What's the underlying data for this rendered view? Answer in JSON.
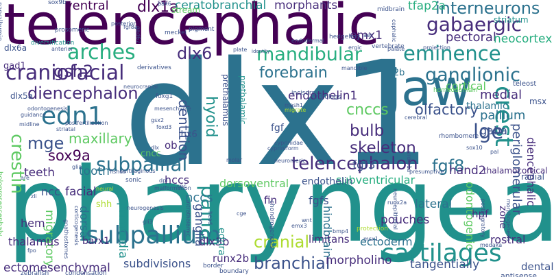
{
  "colors": {
    "background": "#ffffff",
    "palette": [
      "#440154",
      "#472d7b",
      "#3b528b",
      "#2c728e",
      "#21918c",
      "#28ae80",
      "#5ec962",
      "#addc30",
      "#fde725"
    ]
  },
  "words": [
    {
      "text": "dlx1",
      "color": "#2c728e"
    },
    {
      "text": "pharyngeal",
      "color": "#21918c"
    },
    {
      "text": "telencephalic",
      "color": "#440154"
    },
    {
      "text": "jaw",
      "color": "#2c728e"
    },
    {
      "text": "arches",
      "color": "#28ae80"
    },
    {
      "text": "craniofacial",
      "color": "#472d7b"
    },
    {
      "text": "mandibular",
      "color": "#28ae80"
    },
    {
      "text": "eminence",
      "color": "#21918c"
    },
    {
      "text": "telencephalon",
      "color": "#472d7b"
    },
    {
      "text": "subpallial",
      "color": "#2c728e"
    },
    {
      "text": "cartilages",
      "color": "#21918c"
    },
    {
      "text": "subpallium",
      "color": "#2c728e"
    },
    {
      "text": "branchial",
      "color": "#3b528b"
    },
    {
      "text": "gabaergic",
      "color": "#472d7b"
    },
    {
      "text": "ganglionic",
      "color": "#2c728e"
    },
    {
      "text": "diencephalon",
      "color": "#472d7b"
    },
    {
      "text": "edn1",
      "color": "#2c728e"
    },
    {
      "text": "crest",
      "color": "#21918c"
    },
    {
      "text": "mge",
      "color": "#3b528b"
    },
    {
      "text": "lge",
      "color": "#3b528b"
    },
    {
      "text": "interneurons",
      "color": "#2c728e"
    },
    {
      "text": "forebrain",
      "color": "#2c728e"
    },
    {
      "text": "cranial",
      "color": "#addc30"
    },
    {
      "text": "pallial",
      "color": "#21918c"
    },
    {
      "text": "crestin",
      "color": "#5ec962"
    },
    {
      "text": "gsh2",
      "color": "#472d7b"
    },
    {
      "text": "dlx6",
      "color": "#472d7b"
    },
    {
      "text": "hyoid",
      "color": "#21918c"
    },
    {
      "text": "fgf8",
      "color": "#2c728e"
    },
    {
      "text": "skeleton",
      "color": "#472d7b"
    },
    {
      "text": "olfactory",
      "color": "#3b528b"
    },
    {
      "text": "bulb",
      "color": "#472d7b"
    },
    {
      "text": "cnccs",
      "color": "#5ec962"
    },
    {
      "text": "dlx1a",
      "color": "#440154"
    },
    {
      "text": "maxillary",
      "color": "#5ec962"
    },
    {
      "text": "sox9a",
      "color": "#440154"
    },
    {
      "text": "dentition",
      "color": "#3b528b"
    },
    {
      "text": "nccs",
      "color": "#2c728e"
    },
    {
      "text": "ventral",
      "color": "#440154"
    },
    {
      "text": "ceratobranchial",
      "color": "#21918c"
    },
    {
      "text": "pectoral",
      "color": "#472d7b"
    },
    {
      "text": "neocortex",
      "color": "#28ae80"
    },
    {
      "text": "emx1",
      "color": "#472d7b"
    },
    {
      "text": "morphants",
      "color": "#472d7b"
    },
    {
      "text": "tfap2a",
      "color": "#28ae80"
    },
    {
      "text": "endothelin1",
      "color": "#472d7b"
    },
    {
      "text": "fgf3",
      "color": "#3b528b"
    },
    {
      "text": "i12b",
      "color": "#2c728e"
    },
    {
      "text": "medial",
      "color": "#472d7b"
    },
    {
      "text": "pallium",
      "color": "#2c728e"
    },
    {
      "text": "thalamic",
      "color": "#2c728e"
    },
    {
      "text": "gaba",
      "color": "#3b528b"
    },
    {
      "text": "cortical",
      "color": "#5ec962"
    },
    {
      "text": "periglomerular",
      "color": "#3b528b"
    },
    {
      "text": "hand2",
      "color": "#472d7b"
    },
    {
      "text": "dorsoventral",
      "color": "#5ec962"
    },
    {
      "text": "subventricular",
      "color": "#28ae80"
    },
    {
      "text": "facial",
      "color": "#472d7b"
    },
    {
      "text": "hccs",
      "color": "#472d7b"
    },
    {
      "text": "endothelin",
      "color": "#3b528b"
    },
    {
      "text": "tooth",
      "color": "#2c728e"
    },
    {
      "text": "teeth",
      "color": "#472d7b"
    },
    {
      "text": "ncc",
      "color": "#3b528b"
    },
    {
      "text": "migratory",
      "color": "#5ec962"
    },
    {
      "text": "primordia",
      "color": "#21918c"
    },
    {
      "text": "hem",
      "color": "#472d7b"
    },
    {
      "text": "dorsal",
      "color": "#2c728e"
    },
    {
      "text": "ganglia",
      "color": "#3b528b"
    },
    {
      "text": "fgfs",
      "color": "#3b528b"
    },
    {
      "text": "hindbrain",
      "color": "#2c728e"
    },
    {
      "text": "pouches",
      "color": "#472d7b"
    },
    {
      "text": "lateral",
      "color": "#2c728e"
    },
    {
      "text": "odontogenic",
      "color": "#5ec962"
    },
    {
      "text": "diencephalic",
      "color": "#472d7b"
    },
    {
      "text": "hpf",
      "color": "#472d7b"
    },
    {
      "text": "zone",
      "color": "#472d7b"
    },
    {
      "text": "thalamus",
      "color": "#472d7b"
    },
    {
      "text": "barx1",
      "color": "#472d7b"
    },
    {
      "text": "dlx3b",
      "color": "#472d7b"
    },
    {
      "text": "limitans",
      "color": "#472d7b"
    },
    {
      "text": "ectoderm",
      "color": "#2c728e"
    },
    {
      "text": "rostral",
      "color": "#472d7b"
    },
    {
      "text": "ectomesenchymal",
      "color": "#472d7b"
    },
    {
      "text": "subdivisions",
      "color": "#3b528b"
    },
    {
      "text": "runx2b",
      "color": "#472d7b"
    },
    {
      "text": "morpholino",
      "color": "#472d7b"
    },
    {
      "text": "tangentially",
      "color": "#3b528b"
    },
    {
      "text": "dental",
      "color": "#3b528b"
    },
    {
      "text": "ednra",
      "color": "#21918c"
    },
    {
      "text": "striatum",
      "color": "#21918c"
    },
    {
      "text": "stream",
      "color": "#5ec962"
    },
    {
      "text": "svz",
      "color": "#472d7b"
    },
    {
      "text": "sox9b",
      "color": "#3b528b"
    },
    {
      "text": "dlx6a",
      "color": "#3b528b"
    },
    {
      "text": "gad1",
      "color": "#472d7b"
    },
    {
      "text": "dlx5a",
      "color": "#3b528b"
    },
    {
      "text": "fin",
      "color": "#472d7b"
    },
    {
      "text": "ob",
      "color": "#472d7b"
    },
    {
      "text": "lhx6",
      "color": "#3b528b"
    },
    {
      "text": "fgf",
      "color": "#3b528b"
    },
    {
      "text": "cncc",
      "color": "#5ec962"
    },
    {
      "text": "shh",
      "color": "#addc30"
    },
    {
      "text": "prethalamic",
      "color": "#21918c"
    },
    {
      "text": "prethalamus",
      "color": "#3b528b"
    },
    {
      "text": "thalamocortical",
      "color": "#472d7b"
    },
    {
      "text": "radial",
      "color": "#3b528b"
    },
    {
      "text": "hedgehog",
      "color": "#3b528b"
    },
    {
      "text": "vertebrate",
      "color": "#3b528b"
    },
    {
      "text": "teleost",
      "color": "#3b528b"
    },
    {
      "text": "msx",
      "color": "#3b528b"
    },
    {
      "text": "parvalbumin",
      "color": "#3b528b"
    },
    {
      "text": "holoprosencephaly",
      "color": "#5ec962"
    },
    {
      "text": "prosomeric",
      "color": "#3b528b"
    },
    {
      "text": "meckel",
      "color": "#3b528b"
    },
    {
      "text": "pigment",
      "color": "#3b528b"
    },
    {
      "text": "endodermal",
      "color": "#3b528b"
    },
    {
      "text": "diversification",
      "color": "#21918c"
    },
    {
      "text": "identity",
      "color": "#3b528b"
    },
    {
      "text": "derivatives",
      "color": "#3b528b"
    },
    {
      "text": "neurocranial",
      "color": "#3b528b"
    },
    {
      "text": "foxg1",
      "color": "#3b528b"
    },
    {
      "text": "gsx2",
      "color": "#3b528b"
    },
    {
      "text": "foxd3",
      "color": "#3b528b"
    },
    {
      "text": "cartilaginous",
      "color": "#3b528b"
    },
    {
      "text": "sonic",
      "color": "#3b528b"
    },
    {
      "text": "malformation",
      "color": "#3b528b"
    },
    {
      "text": "neurogenesis",
      "color": "#3b528b"
    },
    {
      "text": "corticogenesis",
      "color": "#3b528b"
    },
    {
      "text": "gnathostomes",
      "color": "#3b528b"
    },
    {
      "text": "intrathalamic",
      "color": "#3b528b"
    },
    {
      "text": "chondrogenesis",
      "color": "#3b528b"
    },
    {
      "text": "neuroepithelial",
      "color": "#3b528b"
    },
    {
      "text": "postmigratory",
      "color": "#3b528b"
    },
    {
      "text": "morphogenesis",
      "color": "#3b528b"
    },
    {
      "text": "protection",
      "color": "#addc30"
    },
    {
      "text": "antisense",
      "color": "#3b528b"
    },
    {
      "text": "condensation",
      "color": "#3b528b"
    },
    {
      "text": "zebrafish",
      "color": "#3b528b"
    },
    {
      "text": "boundary",
      "color": "#3b528b"
    },
    {
      "text": "border",
      "color": "#3b528b"
    },
    {
      "text": "incisors",
      "color": "#3b528b"
    },
    {
      "text": "orthologs",
      "color": "#3b528b"
    },
    {
      "text": "homeodomain",
      "color": "#5ec962"
    },
    {
      "text": "rhombomere",
      "color": "#3b528b"
    },
    {
      "text": "presumptive",
      "color": "#3b528b"
    },
    {
      "text": "mandible",
      "color": "#3b528b"
    },
    {
      "text": "cephalic",
      "color": "#3b528b"
    },
    {
      "text": "palate",
      "color": "#3b528b"
    },
    {
      "text": "midbrain",
      "color": "#3b528b"
    },
    {
      "text": "projection",
      "color": "#3b528b"
    },
    {
      "text": "ergic",
      "color": "#3b528b"
    },
    {
      "text": "aer",
      "color": "#3b528b"
    },
    {
      "text": "plate",
      "color": "#3b528b"
    },
    {
      "text": "mesenchyme",
      "color": "#3b528b"
    },
    {
      "text": "migrate",
      "color": "#addc30"
    },
    {
      "text": "cyprinidae",
      "color": "#3b528b"
    },
    {
      "text": "cypriniform",
      "color": "#3b528b"
    },
    {
      "text": "posterior",
      "color": "#3b528b"
    },
    {
      "text": "anterior",
      "color": "#3b528b"
    },
    {
      "text": "guidance",
      "color": "#3b528b"
    },
    {
      "text": "midline",
      "color": "#3b528b"
    },
    {
      "text": "striatal",
      "color": "#3b528b"
    },
    {
      "text": "odontogenesis",
      "color": "#3b528b"
    },
    {
      "text": "postfertilization",
      "color": "#3b528b"
    },
    {
      "text": "fishes",
      "color": "#3b528b"
    },
    {
      "text": "glia",
      "color": "#3b528b"
    },
    {
      "text": "neuromeric",
      "color": "#3b528b"
    },
    {
      "text": "molar",
      "color": "#3b528b"
    },
    {
      "text": "neural",
      "color": "#addc30"
    },
    {
      "text": "gli3",
      "color": "#3b528b"
    },
    {
      "text": "cge",
      "color": "#3b528b"
    },
    {
      "text": "emx3",
      "color": "#3b528b"
    },
    {
      "text": "bmp4",
      "color": "#3b528b"
    },
    {
      "text": "msx1",
      "color": "#3b528b"
    },
    {
      "text": "medaka",
      "color": "#3b528b"
    },
    {
      "text": "runx2a",
      "color": "#3b528b"
    },
    {
      "text": "sox10",
      "color": "#3b528b"
    },
    {
      "text": "prdm1a",
      "color": "#3b528b"
    },
    {
      "text": "pax6",
      "color": "#3b528b"
    },
    {
      "text": "head",
      "color": "#3b528b"
    },
    {
      "text": "fgf8a",
      "color": "#3b528b"
    },
    {
      "text": "gad67",
      "color": "#3b528b"
    },
    {
      "text": "wnt",
      "color": "#3b528b"
    },
    {
      "text": "mash1",
      "color": "#3b528b"
    },
    {
      "text": "cerebral",
      "color": "#3b528b"
    },
    {
      "text": "pal",
      "color": "#3b528b"
    },
    {
      "text": "are",
      "color": "#3b528b"
    },
    {
      "text": "zli",
      "color": "#3b528b"
    },
    {
      "text": "fpo",
      "color": "#3b528b"
    },
    {
      "text": "dlx",
      "color": "#3b528b"
    },
    {
      "text": "dpl",
      "color": "#3b528b"
    },
    {
      "text": "cnc",
      "color": "#3b528b"
    },
    {
      "text": "bmp",
      "color": "#3b528b"
    },
    {
      "text": "hrs",
      "color": "#3b528b"
    },
    {
      "text": "vz",
      "color": "#3b528b"
    },
    {
      "text": "nkx",
      "color": "#3b528b"
    }
  ]
}
